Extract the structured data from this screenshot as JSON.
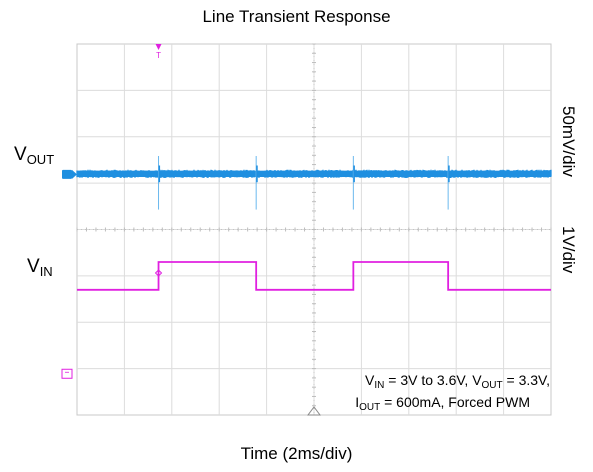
{
  "chart_data": {
    "type": "line",
    "title": "Line Transient Response",
    "xlabel": "Time (2ms/div)",
    "x_divisions": 10,
    "y_divisions": 8,
    "grid": true,
    "channels": [
      {
        "name_main": "V",
        "name_sub": "OUT",
        "scale": "50mV/div",
        "color": "#1f8fe0",
        "marker": "B",
        "baseline_div": 5.2,
        "noise_band_div": 0.18,
        "spike_times_div": [
          1.72,
          3.78,
          5.83,
          7.83
        ],
        "spike_height_div": 1.1
      },
      {
        "name_main": "V",
        "name_sub": "IN",
        "scale": "1V/div",
        "color": "#e020e0",
        "marker": "C",
        "low_div": 2.7,
        "high_div": 3.3,
        "edges_div": [
          {
            "t": 1.72,
            "to": "high"
          },
          {
            "t": 3.78,
            "to": "low"
          },
          {
            "t": 5.83,
            "to": "high"
          },
          {
            "t": 7.83,
            "to": "low"
          }
        ],
        "initial_level": "low",
        "range_div": [
          0,
          10
        ]
      }
    ],
    "trigger_marker": "T",
    "annotation": {
      "line1_parts": [
        {
          "t": "V"
        },
        {
          "s": "IN"
        },
        {
          "t": " = 3V to 3.6V, V"
        },
        {
          "s": "OUT"
        },
        {
          "t": " = 3.3V,"
        }
      ],
      "line2_parts": [
        {
          "t": "I"
        },
        {
          "s": "OUT"
        },
        {
          "t": " = 600mA, Forced PWM"
        }
      ]
    }
  },
  "label_vout_main": "V",
  "label_vout_sub": "OUT",
  "label_vin_main": "V",
  "label_vin_sub": "IN",
  "vin_scale": "1V/div",
  "vout_scale": "50mV/div"
}
